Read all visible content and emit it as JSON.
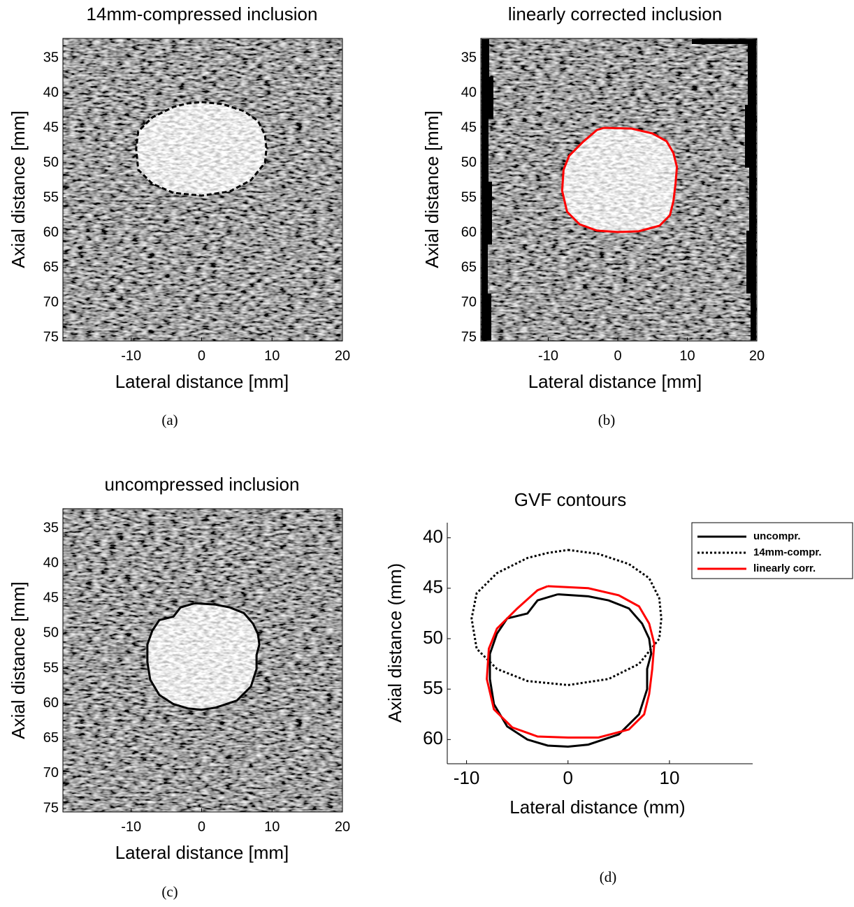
{
  "chart_data": [
    {
      "type": "image",
      "title": "14mm-compressed inclusion",
      "xlabel": "Lateral distance [mm]",
      "ylabel": "Axial distance [mm]",
      "caption": "(a)",
      "xlim": [
        -19.7,
        20
      ],
      "ylim": [
        32.2,
        75.5
      ],
      "xticks": [
        -10,
        0,
        10,
        20
      ],
      "yticks": [
        35,
        40,
        45,
        50,
        55,
        60,
        65,
        70,
        75
      ],
      "y_reversed": true,
      "series": [
        {
          "color": "#000000",
          "linestyle": "dashed",
          "x": [
            0,
            3,
            6,
            8,
            9,
            9.2,
            9,
            7,
            4,
            0,
            -4,
            -7,
            -9,
            -9.3,
            -9,
            -7,
            -4,
            -2,
            0
          ],
          "y": [
            41.3,
            41.6,
            42.6,
            44,
            46,
            48,
            50,
            52.5,
            54.1,
            54.7,
            54.3,
            53,
            51,
            48,
            45.5,
            43.5,
            42,
            41.5,
            41.3
          ]
        }
      ]
    },
    {
      "type": "image",
      "title": "linearly corrected inclusion",
      "xlabel": "Lateral distance [mm]",
      "ylabel": "Axial distance [mm]",
      "caption": "(b)",
      "xlim": [
        -19.7,
        20
      ],
      "ylim": [
        32.2,
        75.5
      ],
      "xticks": [
        -10,
        0,
        10,
        20
      ],
      "yticks": [
        35,
        40,
        45,
        50,
        55,
        60,
        65,
        70,
        75
      ],
      "y_reversed": true,
      "series": [
        {
          "color": "#ff0000",
          "linestyle": "solid",
          "x": [
            -2,
            2,
            5,
            7,
            8,
            8.5,
            8.3,
            8,
            7.5,
            6,
            3,
            0,
            -3,
            -5.5,
            -7.3,
            -8,
            -7.8,
            -7,
            -5,
            -3,
            -2
          ],
          "y": [
            45,
            45.1,
            45.8,
            46.9,
            48.6,
            50.6,
            53,
            55.5,
            57.5,
            59,
            59.8,
            59.9,
            59.7,
            58.8,
            57,
            54,
            51,
            49,
            47,
            45.3,
            45
          ]
        }
      ]
    },
    {
      "type": "image",
      "title": "uncompressed inclusion",
      "xlabel": "Lateral distance [mm]",
      "ylabel": "Axial distance [mm]",
      "caption": "(c)",
      "xlim": [
        -19.7,
        20
      ],
      "ylim": [
        32.2,
        75.5
      ],
      "xticks": [
        -10,
        0,
        10,
        20
      ],
      "yticks": [
        35,
        40,
        45,
        50,
        55,
        60,
        65,
        70,
        75
      ],
      "y_reversed": true,
      "series": [
        {
          "color": "#000000",
          "linestyle": "solid",
          "x": [
            -1,
            2,
            4,
            6,
            7.3,
            8,
            8.2,
            7.8,
            7.8,
            7,
            5,
            2,
            0,
            -2,
            -4,
            -6,
            -7.3,
            -7.7,
            -7.7,
            -7,
            -6,
            -4,
            -3,
            -1
          ],
          "y": [
            45.7,
            45.9,
            46.3,
            47.1,
            48.6,
            50.1,
            51.6,
            53.1,
            55.1,
            57.6,
            59.6,
            60.6,
            60.9,
            60.7,
            60.1,
            58.8,
            56.6,
            54.1,
            51.6,
            49.6,
            48.1,
            47.6,
            46.3,
            45.7
          ]
        }
      ]
    },
    {
      "type": "line",
      "title": "GVF contours",
      "xlabel": "Lateral distance (mm)",
      "ylabel": "Axial distance (mm)",
      "caption": "(d)",
      "xlim": [
        -11.9,
        18.2
      ],
      "ylim": [
        38.5,
        62.4
      ],
      "xticks": [
        -10,
        0,
        10
      ],
      "yticks": [
        40,
        45,
        50,
        55,
        60
      ],
      "y_reversed": true,
      "legend": "upper right",
      "series": [
        {
          "name": "uncompr.",
          "color": "#000000",
          "linestyle": "solid",
          "x": [
            -1,
            2,
            4,
            6,
            7.3,
            8,
            8.2,
            7.8,
            7.8,
            7,
            5,
            2,
            0,
            -2,
            -4,
            -6,
            -7.3,
            -7.7,
            -7.7,
            -7,
            -6,
            -4,
            -3,
            -1
          ],
          "y": [
            45.6,
            45.8,
            46.2,
            47,
            48.5,
            50,
            51.5,
            53,
            55,
            57.5,
            59.5,
            60.5,
            60.7,
            60.6,
            60,
            58.7,
            56.5,
            54,
            51.5,
            49.5,
            48,
            47.5,
            46.2,
            45.6
          ]
        },
        {
          "name": "14mm-compr.",
          "color": "#000000",
          "linestyle": "dotted",
          "x": [
            0,
            3,
            6,
            8,
            9,
            9.2,
            9,
            7,
            4,
            0,
            -4,
            -7,
            -9,
            -9.5,
            -9,
            -7,
            -4,
            -2,
            0
          ],
          "y": [
            41.2,
            41.6,
            42.6,
            44,
            46,
            48,
            50,
            52.5,
            54,
            54.6,
            54.2,
            53,
            51,
            48,
            45.5,
            43.5,
            42,
            41.5,
            41.2
          ]
        },
        {
          "name": "linearly corr.",
          "color": "#ff0000",
          "linestyle": "solid",
          "x": [
            -2,
            2,
            5,
            7,
            8,
            8.5,
            8.3,
            8,
            7.5,
            6,
            3,
            0,
            -3,
            -5.5,
            -7.3,
            -8,
            -7.8,
            -7,
            -5,
            -3,
            -2
          ],
          "y": [
            44.8,
            45,
            45.7,
            46.8,
            48.5,
            50.5,
            53,
            55.5,
            57.5,
            59,
            59.8,
            59.8,
            59.7,
            58.8,
            57,
            54,
            51,
            49,
            47,
            45.2,
            44.8
          ]
        }
      ]
    }
  ]
}
